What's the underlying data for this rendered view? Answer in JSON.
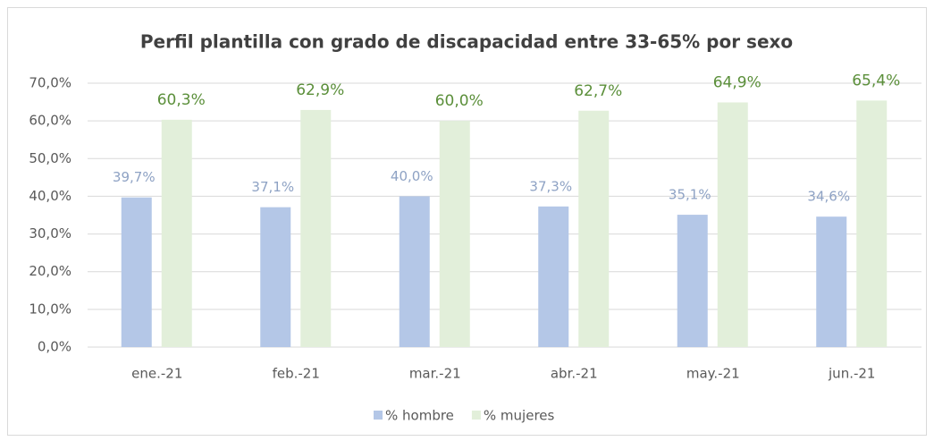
{
  "chart_data": {
    "type": "bar",
    "title": "Perfil plantilla con grado de discapacidad  entre 33-65% por sexo",
    "categories": [
      "ene.-21",
      "feb.-21",
      "mar.-21",
      "abr.-21",
      "may.-21",
      "jun.-21"
    ],
    "series": [
      {
        "name": "% hombre",
        "color": "#b4c7e7",
        "label_color": "#8ea2c4",
        "values": [
          39.7,
          37.1,
          40.0,
          37.3,
          35.1,
          34.6
        ],
        "value_labels": [
          "39,7%",
          "37,1%",
          "40,0%",
          "37,3%",
          "35,1%",
          "34,6%"
        ]
      },
      {
        "name": "% mujeres",
        "color": "#e2efda",
        "label_color": "#5b8f3a",
        "values": [
          60.3,
          62.9,
          60.0,
          62.7,
          64.9,
          65.4
        ],
        "value_labels": [
          "60,3%",
          "62,9%",
          "60,0%",
          "62,7%",
          "64,9%",
          "65,4%"
        ]
      }
    ],
    "ylim": [
      0,
      70
    ],
    "yticks": [
      {
        "value": 0,
        "label": "0,0%"
      },
      {
        "value": 10,
        "label": "10,0%"
      },
      {
        "value": 20,
        "label": "20,0%"
      },
      {
        "value": 30,
        "label": "30,0%"
      },
      {
        "value": 40,
        "label": "40,0%"
      },
      {
        "value": 50,
        "label": "50,0%"
      },
      {
        "value": 60,
        "label": "60,0%"
      },
      {
        "value": 70,
        "label": "70,0%"
      }
    ],
    "grid": true,
    "legend": "bottom"
  }
}
